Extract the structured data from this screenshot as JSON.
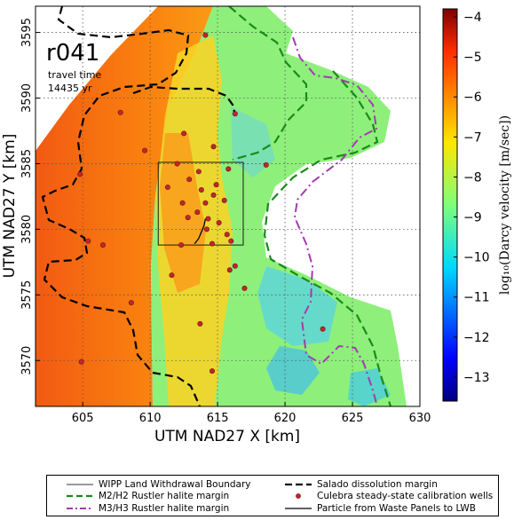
{
  "map": {
    "run_label": "r041",
    "travel_time_label": "travel time",
    "travel_time_value": "14435 yr",
    "xlabel": "UTM NAD27 X [km]",
    "ylabel": "UTM NAD27 Y [km]",
    "colorbar_label": "log₁₀(Darcy velocity [m/sec])"
  },
  "chart_data": {
    "type": "heatmap",
    "xlim": [
      601.5,
      630
    ],
    "ylim": [
      3566.5,
      3597
    ],
    "x_ticks": [
      605,
      610,
      615,
      620,
      625,
      630
    ],
    "x_tick_labels": [
      "605",
      "610",
      "615",
      "620",
      "625",
      "630"
    ],
    "y_ticks": [
      3570,
      3575,
      3580,
      3585,
      3590,
      3595
    ],
    "y_tick_labels": [
      "3570",
      "3575",
      "3580",
      "3585",
      "3590",
      "3595"
    ],
    "grid": true,
    "colorbar": {
      "min": -13.6,
      "max": -3.8,
      "ticks": [
        -4,
        -5,
        -6,
        -7,
        -8,
        -9,
        -10,
        -11,
        -12,
        -13
      ],
      "tick_labels": [
        "−4",
        "−5",
        "−6",
        "−7",
        "−8",
        "−9",
        "−10",
        "−11",
        "−12",
        "−13"
      ]
    },
    "wipp_boundary": {
      "x": [
        610.6,
        616.9
      ],
      "y": [
        3578.8,
        3585.1
      ]
    },
    "particle_path": [
      [
        614.1,
        3580.8
      ],
      [
        614.0,
        3580.3
      ],
      [
        613.8,
        3579.8
      ],
      [
        613.6,
        3579.3
      ],
      [
        613.3,
        3578.9
      ]
    ],
    "wells": [
      [
        614.1,
        3594.8
      ],
      [
        616.3,
        3588.8
      ],
      [
        607.8,
        3588.9
      ],
      [
        612.5,
        3587.3
      ],
      [
        609.6,
        3586.0
      ],
      [
        614.7,
        3586.3
      ],
      [
        612.0,
        3585.0
      ],
      [
        613.6,
        3584.4
      ],
      [
        615.8,
        3584.6
      ],
      [
        604.8,
        3584.2
      ],
      [
        612.9,
        3583.8
      ],
      [
        614.9,
        3583.4
      ],
      [
        611.3,
        3583.2
      ],
      [
        613.8,
        3583.0
      ],
      [
        614.7,
        3582.6
      ],
      [
        612.4,
        3582.0
      ],
      [
        614.1,
        3582.0
      ],
      [
        615.5,
        3582.2
      ],
      [
        613.5,
        3581.3
      ],
      [
        612.8,
        3580.9
      ],
      [
        614.3,
        3580.8
      ],
      [
        615.1,
        3580.5
      ],
      [
        614.2,
        3580.0
      ],
      [
        615.7,
        3579.6
      ],
      [
        616.0,
        3579.1
      ],
      [
        612.3,
        3578.8
      ],
      [
        614.6,
        3578.9
      ],
      [
        605.4,
        3579.1
      ],
      [
        606.5,
        3578.8
      ],
      [
        616.3,
        3577.2
      ],
      [
        611.6,
        3576.5
      ],
      [
        615.9,
        3576.9
      ],
      [
        617.0,
        3575.5
      ],
      [
        608.6,
        3574.4
      ],
      [
        613.7,
        3572.8
      ],
      [
        622.8,
        3572.4
      ],
      [
        604.9,
        3569.9
      ],
      [
        614.6,
        3569.2
      ],
      [
        618.6,
        3584.9
      ]
    ],
    "legend": {
      "wipp": "WIPP Land Withdrawal Boundary",
      "m2h2": "M2/H2 Rustler halite margin",
      "m3h3": "M3/H3 Rustler halite margin",
      "salado": "Salado dissolution margin",
      "wells": "Culebra steady-state calibration wells",
      "particle": "Particle from Waste Panels to LWB"
    }
  },
  "colors": {
    "well_fill": "#c1272d",
    "well_edge": "#6e1010",
    "salado": "#000000",
    "m2h2": "#1a8a1a",
    "m3h3": "#a23bb0"
  }
}
